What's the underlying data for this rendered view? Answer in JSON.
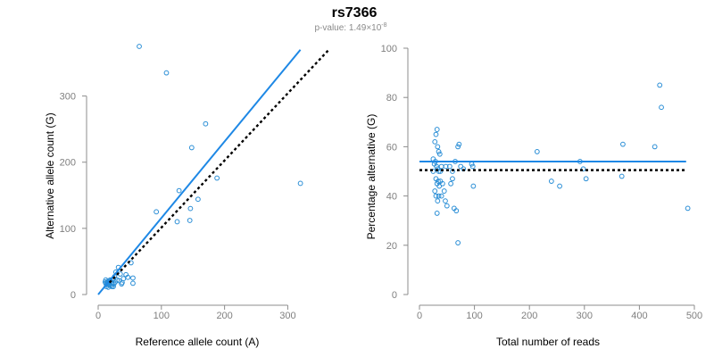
{
  "figure": {
    "title": "rs7366",
    "pvalue_prefix": "p-value: 1.49",
    "pvalue_times": "×",
    "pvalue_base": "10",
    "pvalue_exp": "-8"
  },
  "colors": {
    "points": "#2a8ed6",
    "fit_line": "#1e88e5",
    "reference_line": "#000000",
    "axis": "#8c8c8c"
  },
  "chart_data": [
    {
      "type": "scatter",
      "xlabel": "Reference allele count (A)",
      "ylabel": "Alternative allele count (G)",
      "xlim": [
        0,
        370
      ],
      "ylim": [
        0,
        375
      ],
      "xticks": [
        0,
        100,
        200,
        300
      ],
      "yticks": [
        0,
        100,
        200,
        300
      ],
      "grid": false,
      "points": [
        [
          65,
          375
        ],
        [
          108,
          335
        ],
        [
          170,
          258
        ],
        [
          148,
          222
        ],
        [
          188,
          176
        ],
        [
          320,
          168
        ],
        [
          128,
          157
        ],
        [
          158,
          144
        ],
        [
          92,
          125
        ],
        [
          146,
          130
        ],
        [
          145,
          112
        ],
        [
          125,
          110
        ],
        [
          52,
          48
        ],
        [
          55,
          25
        ],
        [
          55,
          17
        ],
        [
          44,
          30
        ],
        [
          47,
          26
        ],
        [
          40,
          24
        ],
        [
          38,
          18
        ],
        [
          32,
          41
        ],
        [
          28,
          34
        ],
        [
          35,
          31
        ],
        [
          30,
          22
        ],
        [
          26,
          27
        ],
        [
          25,
          16
        ],
        [
          22,
          18
        ],
        [
          24,
          24
        ],
        [
          20,
          20
        ],
        [
          18,
          14
        ],
        [
          19,
          22
        ],
        [
          17,
          18
        ],
        [
          15,
          20
        ],
        [
          14,
          15
        ],
        [
          13,
          12
        ],
        [
          16,
          11
        ],
        [
          12,
          17
        ],
        [
          11,
          19
        ],
        [
          12,
          22
        ],
        [
          22,
          12
        ],
        [
          24,
          12
        ],
        [
          20,
          13
        ],
        [
          27,
          19
        ],
        [
          33,
          21
        ],
        [
          37,
          16
        ],
        [
          21,
          17
        ],
        [
          18,
          21
        ],
        [
          15,
          16
        ],
        [
          14,
          18
        ],
        [
          16,
          18
        ],
        [
          17,
          15
        ]
      ],
      "lines": [
        {
          "name": "fit",
          "style": "solid",
          "from": [
            0,
            0
          ],
          "to": [
            320,
            370
          ]
        },
        {
          "name": "reference",
          "style": "dotted",
          "from": [
            18,
            18
          ],
          "to": [
            365,
            370
          ]
        }
      ]
    },
    {
      "type": "scatter",
      "xlabel": "Total number of reads",
      "ylabel": "Percentage alternative (G)",
      "xlim": [
        0,
        500
      ],
      "ylim": [
        0,
        100
      ],
      "xticks": [
        0,
        100,
        200,
        300,
        400,
        500
      ],
      "yticks": [
        0,
        20,
        40,
        60,
        80,
        100
      ],
      "grid": false,
      "points": [
        [
          437,
          85
        ],
        [
          440,
          76
        ],
        [
          370,
          61
        ],
        [
          428,
          60
        ],
        [
          214,
          58
        ],
        [
          292,
          54
        ],
        [
          298,
          51
        ],
        [
          303,
          47
        ],
        [
          240,
          46
        ],
        [
          255,
          44
        ],
        [
          368,
          48
        ],
        [
          488,
          35
        ],
        [
          28,
          62
        ],
        [
          30,
          65
        ],
        [
          32,
          67
        ],
        [
          33,
          60
        ],
        [
          35,
          58
        ],
        [
          37,
          57
        ],
        [
          25,
          55
        ],
        [
          27,
          53
        ],
        [
          29,
          54
        ],
        [
          31,
          52
        ],
        [
          33,
          51
        ],
        [
          35,
          50
        ],
        [
          38,
          50
        ],
        [
          40,
          52
        ],
        [
          30,
          47
        ],
        [
          32,
          45
        ],
        [
          34,
          46
        ],
        [
          36,
          44
        ],
        [
          38,
          46
        ],
        [
          42,
          45
        ],
        [
          45,
          42
        ],
        [
          28,
          42
        ],
        [
          30,
          40
        ],
        [
          33,
          38
        ],
        [
          35,
          40
        ],
        [
          32,
          33
        ],
        [
          40,
          40
        ],
        [
          47,
          38
        ],
        [
          50,
          36
        ],
        [
          55,
          52
        ],
        [
          60,
          50
        ],
        [
          65,
          54
        ],
        [
          70,
          60
        ],
        [
          72,
          61
        ],
        [
          75,
          52
        ],
        [
          80,
          51
        ],
        [
          95,
          53
        ],
        [
          97,
          52
        ],
        [
          98,
          44
        ],
        [
          60,
          47
        ],
        [
          63,
          35
        ],
        [
          67,
          34
        ],
        [
          70,
          21
        ],
        [
          57,
          45
        ],
        [
          48,
          52
        ],
        [
          25,
          50
        ]
      ],
      "lines": [
        {
          "name": "fit",
          "style": "solid",
          "from": [
            0,
            54
          ],
          "to": [
            485,
            54
          ]
        },
        {
          "name": "reference",
          "style": "dotted",
          "from": [
            0,
            50.5
          ],
          "to": [
            485,
            50.5
          ]
        }
      ]
    }
  ]
}
